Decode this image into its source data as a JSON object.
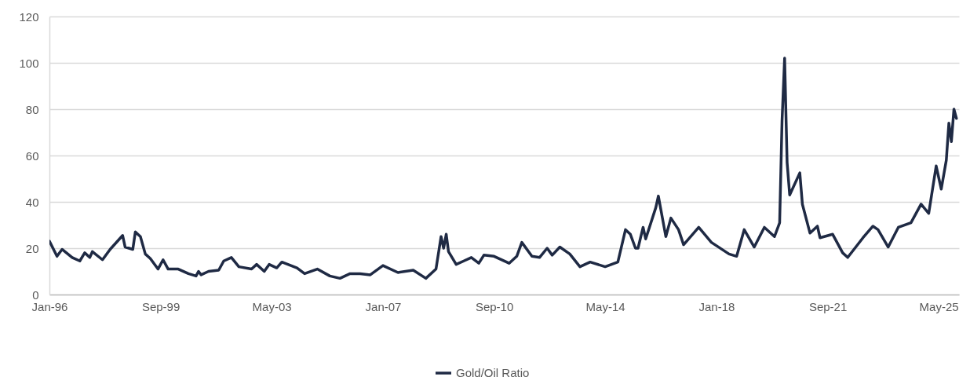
{
  "chart_data": {
    "type": "line",
    "x": [
      "1996-01",
      "1996-04",
      "1996-06",
      "1996-10",
      "1997-01",
      "1997-03",
      "1997-05",
      "1997-06",
      "1997-10",
      "1998-01",
      "1998-06",
      "1998-07",
      "1998-10",
      "1998-11",
      "1999-01",
      "1999-03",
      "1999-05",
      "1999-08",
      "1999-10",
      "1999-12",
      "2000-04",
      "2000-08",
      "2000-11",
      "2000-12",
      "2001-01",
      "2001-04",
      "2001-08",
      "2001-10",
      "2002-01",
      "2002-04",
      "2002-09",
      "2002-11",
      "2003-02",
      "2003-04",
      "2003-07",
      "2003-09",
      "2004-03",
      "2004-06",
      "2004-11",
      "2005-04",
      "2005-08",
      "2005-12",
      "2006-04",
      "2006-08",
      "2007-01",
      "2007-07",
      "2008-01",
      "2008-06",
      "2008-10",
      "2008-12",
      "2009-01",
      "2009-02",
      "2009-03",
      "2009-06",
      "2009-09",
      "2009-12",
      "2010-03",
      "2010-05",
      "2010-09",
      "2011-03",
      "2011-06",
      "2011-08",
      "2011-12",
      "2012-03",
      "2012-06",
      "2012-08",
      "2012-11",
      "2013-03",
      "2013-07",
      "2013-11",
      "2014-05",
      "2014-10",
      "2015-01",
      "2015-03",
      "2015-05",
      "2015-06",
      "2015-08",
      "2015-09",
      "2016-01",
      "2016-02",
      "2016-05",
      "2016-07",
      "2016-10",
      "2016-12",
      "2017-06",
      "2017-11",
      "2018-06",
      "2018-09",
      "2018-12",
      "2019-04",
      "2019-08",
      "2019-12",
      "2020-02",
      "2020-03",
      "2020-04",
      "2020-05",
      "2020-06",
      "2020-10",
      "2020-11",
      "2021-02",
      "2021-05",
      "2021-06",
      "2021-11",
      "2022-03",
      "2022-05",
      "2022-11",
      "2023-03",
      "2023-05",
      "2023-09",
      "2024-01",
      "2024-06",
      "2024-10",
      "2025-01",
      "2025-04",
      "2025-06",
      "2025-08",
      "2025-09",
      "2025-10",
      "2025-11",
      "2025-12"
    ],
    "series": [
      {
        "name": "Gold/Oil Ratio",
        "color": "#1f2a44",
        "values": [
          23,
          16.5,
          19.5,
          16,
          14.5,
          18,
          16,
          18.5,
          15,
          19.5,
          25.5,
          20.5,
          19.5,
          27,
          25,
          17.5,
          15.5,
          11,
          15,
          11,
          11,
          9,
          8,
          10,
          8.5,
          10,
          10.5,
          14.5,
          16,
          12,
          11,
          13,
          10,
          13,
          11.5,
          14,
          11.5,
          9,
          11,
          8,
          7,
          9,
          9,
          8.5,
          12.5,
          9.5,
          10.5,
          7,
          11,
          25,
          20,
          26,
          18.5,
          13,
          14.5,
          16,
          13.5,
          17,
          16.5,
          13.5,
          16.5,
          22.5,
          16.5,
          16,
          20,
          17,
          20.5,
          17.5,
          12,
          14,
          12,
          14,
          28,
          26,
          20,
          20,
          29,
          24,
          37.5,
          42.5,
          25,
          33,
          28,
          21.5,
          29,
          22.5,
          17.5,
          16.5,
          28,
          20.5,
          29,
          25,
          31,
          75,
          102,
          57,
          43,
          52.5,
          39,
          26.5,
          29.5,
          24.5,
          26,
          18,
          16,
          24.5,
          29.5,
          28,
          20.5,
          29,
          31,
          39,
          35,
          55.5,
          45.5,
          58,
          74,
          66,
          80,
          76
        ]
      }
    ],
    "ylim": [
      0,
      120
    ],
    "yticks": [
      0,
      20,
      40,
      60,
      80,
      100,
      120
    ],
    "xlim": [
      "1996-01",
      "2026-01"
    ],
    "xticks": [
      {
        "value": "1996-01",
        "label": "Jan-96"
      },
      {
        "value": "1999-09",
        "label": "Sep-99"
      },
      {
        "value": "2003-05",
        "label": "May-03"
      },
      {
        "value": "2007-01",
        "label": "Jan-07"
      },
      {
        "value": "2010-09",
        "label": "Sep-10"
      },
      {
        "value": "2014-05",
        "label": "May-14"
      },
      {
        "value": "2018-01",
        "label": "Jan-18"
      },
      {
        "value": "2021-09",
        "label": "Sep-21"
      },
      {
        "value": "2025-05",
        "label": "May-25"
      }
    ],
    "grid": "y",
    "legend": "bottom",
    "marker": "none",
    "line_style": "solid"
  }
}
